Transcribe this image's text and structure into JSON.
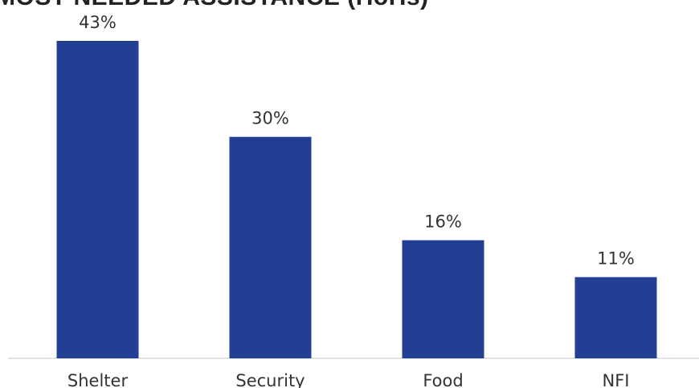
{
  "chart_data": {
    "type": "bar",
    "title": "MOST NEEDED ASSISTANCE (HoHs)",
    "categories": [
      "Shelter",
      "Security",
      "Food",
      "NFI"
    ],
    "values": [
      43,
      30,
      16,
      11
    ],
    "value_labels": [
      "43%",
      "30%",
      "16%",
      "11%"
    ],
    "unit": "%",
    "ylim": [
      0,
      43
    ],
    "grid": false,
    "legend": "none",
    "bar_color": "#233f94"
  }
}
